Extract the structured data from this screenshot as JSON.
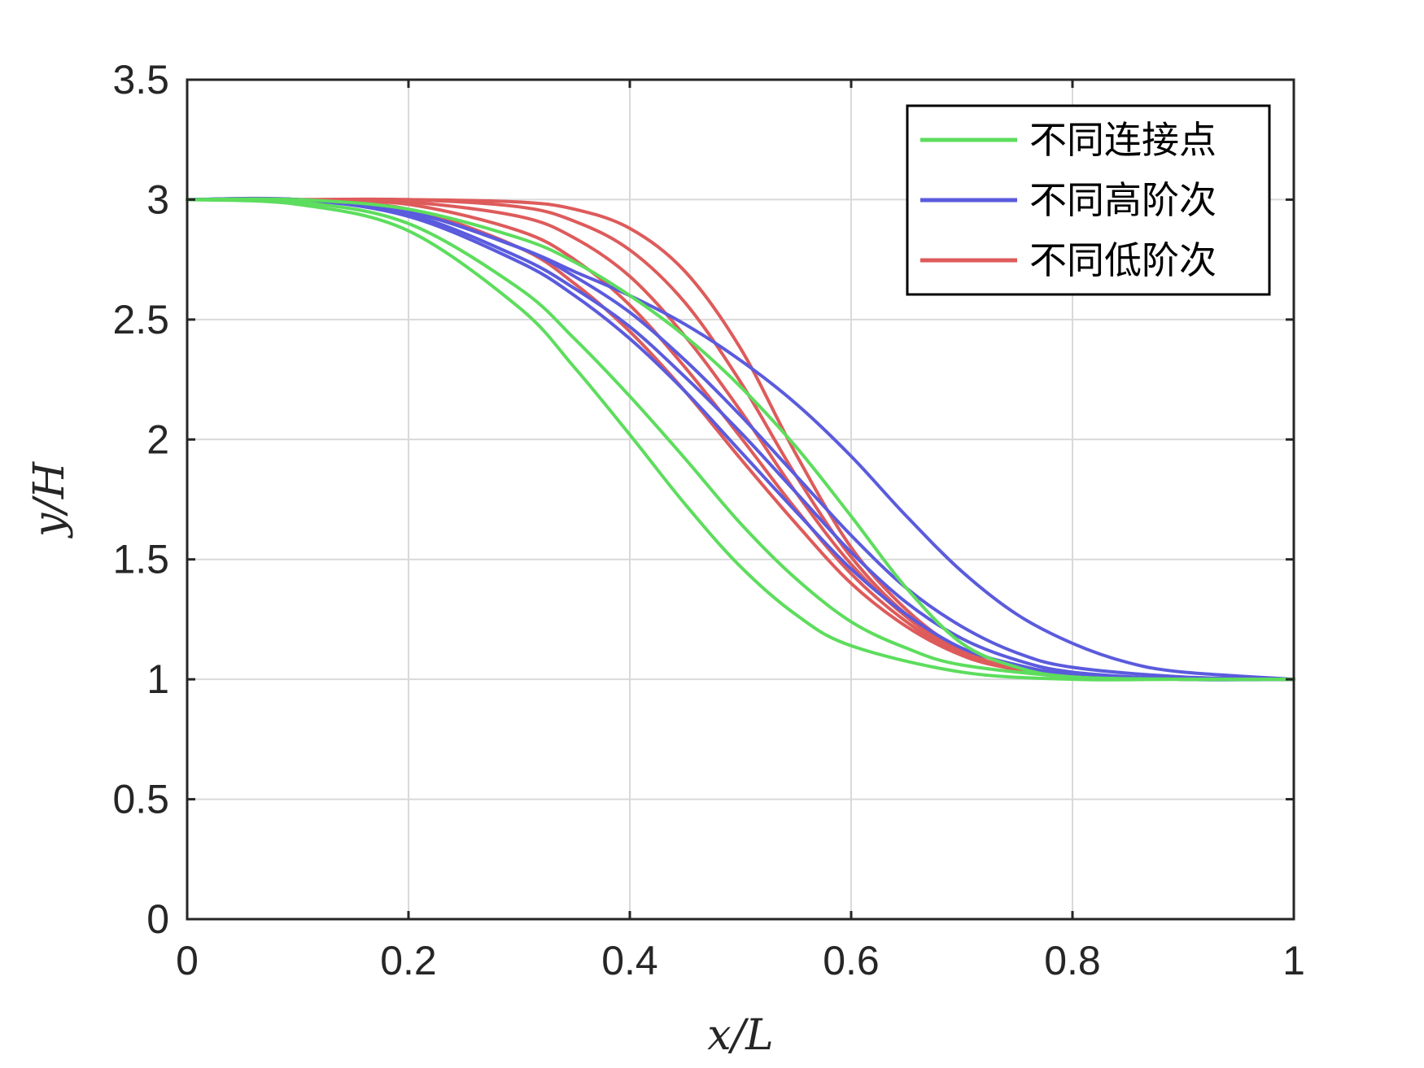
{
  "chart_data": {
    "type": "line",
    "title": "",
    "xlabel": "x/L",
    "ylabel": "y/H",
    "xlim": [
      0,
      1
    ],
    "ylim": [
      0,
      3.5
    ],
    "xticks": [
      "0",
      "0.2",
      "0.4",
      "0.6",
      "0.8",
      "1"
    ],
    "yticks": [
      "0",
      "0.5",
      "1",
      "1.5",
      "2",
      "2.5",
      "3",
      "3.5"
    ],
    "grid": true,
    "legend_position": "top-right",
    "legend": [
      {
        "label": "不同连接点",
        "color": "#5ddd5d"
      },
      {
        "label": "不同高阶次",
        "color": "#5b5bdd"
      },
      {
        "label": "不同低阶次",
        "color": "#de5b5b"
      }
    ],
    "series": [
      {
        "group": 0,
        "color": "#5ddd5d",
        "x": [
          0,
          0.1,
          0.2,
          0.3,
          0.35,
          0.4,
          0.45,
          0.5,
          0.55,
          0.6,
          0.7,
          0.8,
          0.9,
          1.0
        ],
        "y": [
          3.0,
          2.98,
          2.87,
          2.55,
          2.3,
          2.02,
          1.73,
          1.47,
          1.27,
          1.14,
          1.03,
          1.0,
          1.0,
          1.0
        ]
      },
      {
        "group": 0,
        "color": "#5ddd5d",
        "x": [
          0,
          0.1,
          0.2,
          0.3,
          0.35,
          0.4,
          0.45,
          0.5,
          0.55,
          0.6,
          0.65,
          0.7,
          0.8,
          0.9,
          1.0
        ],
        "y": [
          3.0,
          2.99,
          2.9,
          2.63,
          2.42,
          2.18,
          1.92,
          1.65,
          1.42,
          1.24,
          1.13,
          1.06,
          1.01,
          1.0,
          1.0
        ]
      },
      {
        "group": 0,
        "color": "#5ddd5d",
        "x": [
          0,
          0.1,
          0.2,
          0.3,
          0.35,
          0.4,
          0.45,
          0.5,
          0.55,
          0.6,
          0.65,
          0.7,
          0.75,
          0.8,
          0.9,
          1.0
        ],
        "y": [
          3.0,
          3.0,
          2.96,
          2.84,
          2.74,
          2.6,
          2.43,
          2.22,
          1.97,
          1.68,
          1.38,
          1.15,
          1.05,
          1.01,
          1.0,
          1.0
        ]
      },
      {
        "group": 1,
        "color": "#5b5bdd",
        "x": [
          0,
          0.1,
          0.2,
          0.3,
          0.35,
          0.4,
          0.45,
          0.5,
          0.55,
          0.6,
          0.65,
          0.7,
          0.75,
          0.8,
          0.85,
          0.9,
          1.0
        ],
        "y": [
          3.0,
          3.0,
          2.95,
          2.8,
          2.7,
          2.6,
          2.48,
          2.33,
          2.15,
          1.93,
          1.68,
          1.45,
          1.27,
          1.15,
          1.07,
          1.03,
          1.0
        ]
      },
      {
        "group": 1,
        "color": "#5b5bdd",
        "x": [
          0,
          0.1,
          0.2,
          0.3,
          0.35,
          0.4,
          0.45,
          0.5,
          0.55,
          0.6,
          0.65,
          0.7,
          0.75,
          0.8,
          0.9,
          1.0
        ],
        "y": [
          3.0,
          3.0,
          2.95,
          2.8,
          2.68,
          2.53,
          2.33,
          2.1,
          1.85,
          1.6,
          1.38,
          1.22,
          1.11,
          1.05,
          1.01,
          1.0
        ]
      },
      {
        "group": 1,
        "color": "#5b5bdd",
        "x": [
          0,
          0.1,
          0.2,
          0.3,
          0.35,
          0.4,
          0.45,
          0.5,
          0.55,
          0.6,
          0.65,
          0.7,
          0.75,
          0.8,
          0.9,
          1.0
        ],
        "y": [
          3.0,
          3.0,
          2.94,
          2.76,
          2.63,
          2.47,
          2.26,
          2.03,
          1.78,
          1.53,
          1.32,
          1.17,
          1.08,
          1.03,
          1.0,
          1.0
        ]
      },
      {
        "group": 1,
        "color": "#5b5bdd",
        "x": [
          0,
          0.1,
          0.2,
          0.3,
          0.35,
          0.4,
          0.45,
          0.5,
          0.55,
          0.6,
          0.65,
          0.7,
          0.75,
          0.8,
          0.9,
          1.0
        ],
        "y": [
          3.0,
          3.0,
          2.93,
          2.74,
          2.6,
          2.42,
          2.2,
          1.95,
          1.7,
          1.46,
          1.27,
          1.13,
          1.06,
          1.02,
          1.0,
          1.0
        ]
      },
      {
        "group": 2,
        "color": "#de5b5b",
        "x": [
          0,
          0.1,
          0.2,
          0.3,
          0.35,
          0.4,
          0.45,
          0.5,
          0.55,
          0.6,
          0.65,
          0.7,
          0.75,
          0.8,
          0.9,
          1.0
        ],
        "y": [
          3.0,
          3.0,
          2.96,
          2.8,
          2.65,
          2.45,
          2.2,
          1.92,
          1.65,
          1.4,
          1.22,
          1.1,
          1.04,
          1.01,
          1.0,
          1.0
        ]
      },
      {
        "group": 2,
        "color": "#de5b5b",
        "x": [
          0,
          0.1,
          0.2,
          0.3,
          0.35,
          0.4,
          0.45,
          0.5,
          0.55,
          0.6,
          0.65,
          0.7,
          0.75,
          0.8,
          0.9,
          1.0
        ],
        "y": [
          3.0,
          3.0,
          2.98,
          2.87,
          2.75,
          2.56,
          2.3,
          2.01,
          1.71,
          1.44,
          1.24,
          1.1,
          1.04,
          1.01,
          1.0,
          1.0
        ]
      },
      {
        "group": 2,
        "color": "#de5b5b",
        "x": [
          0,
          0.1,
          0.2,
          0.3,
          0.35,
          0.4,
          0.45,
          0.5,
          0.55,
          0.6,
          0.65,
          0.7,
          0.75,
          0.8,
          0.9,
          1.0
        ],
        "y": [
          3.0,
          3.0,
          2.99,
          2.93,
          2.84,
          2.68,
          2.43,
          2.12,
          1.78,
          1.48,
          1.26,
          1.11,
          1.04,
          1.01,
          1.0,
          1.0
        ]
      },
      {
        "group": 2,
        "color": "#de5b5b",
        "x": [
          0,
          0.1,
          0.2,
          0.3,
          0.35,
          0.4,
          0.45,
          0.5,
          0.55,
          0.6,
          0.65,
          0.7,
          0.75,
          0.8,
          0.9,
          1.0
        ],
        "y": [
          3.0,
          3.0,
          3.0,
          2.97,
          2.91,
          2.79,
          2.57,
          2.24,
          1.85,
          1.51,
          1.27,
          1.12,
          1.04,
          1.01,
          1.0,
          1.0
        ]
      },
      {
        "group": 2,
        "color": "#de5b5b",
        "x": [
          0,
          0.1,
          0.2,
          0.3,
          0.35,
          0.4,
          0.45,
          0.5,
          0.55,
          0.6,
          0.65,
          0.7,
          0.75,
          0.8,
          0.9,
          1.0
        ],
        "y": [
          3.0,
          3.0,
          3.0,
          2.99,
          2.96,
          2.88,
          2.7,
          2.38,
          1.94,
          1.55,
          1.29,
          1.12,
          1.04,
          1.01,
          1.0,
          1.0
        ]
      }
    ]
  }
}
